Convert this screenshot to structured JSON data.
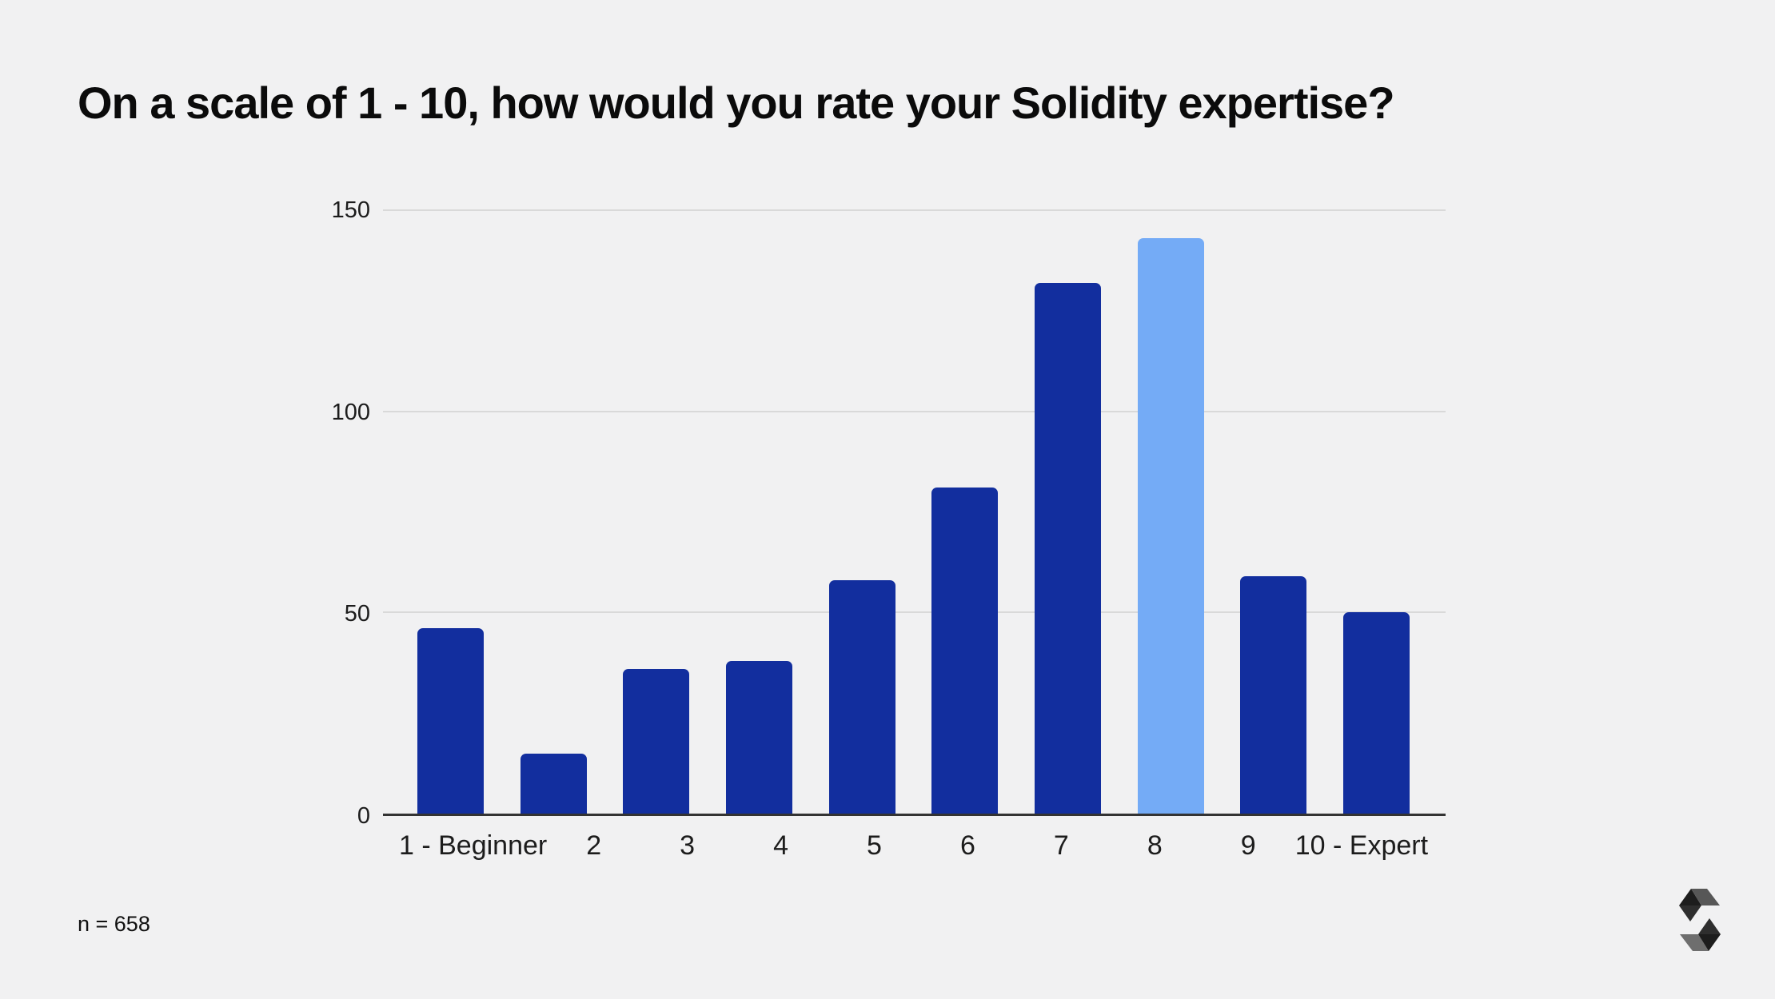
{
  "title": "On a scale of 1 - 10, how would you rate your Solidity expertise?",
  "footer": {
    "sample_size_label": "n = 658"
  },
  "logo": {
    "name": "solidity-logo"
  },
  "colors": {
    "background": "#f1f1f2",
    "bar": "#122e9e",
    "bar_highlight": "#74abf6",
    "gridline": "#d9d9d9",
    "axis_line": "#333333",
    "text": "#1c1c1c"
  },
  "chart_data": {
    "type": "bar",
    "title": "On a scale of 1 - 10, how would you rate your Solidity expertise?",
    "categories": [
      "1 - Beginner",
      "2",
      "3",
      "4",
      "5",
      "6",
      "7",
      "8",
      "9",
      "10 - Expert"
    ],
    "values": [
      46,
      15,
      36,
      38,
      58,
      81,
      132,
      143,
      59,
      50
    ],
    "highlight_index": 7,
    "highlighted_category": "8",
    "xlabel": "",
    "ylabel": "",
    "ylim": [
      0,
      150
    ],
    "yticks": [
      0,
      50,
      100,
      150
    ],
    "ytick_labels": [
      "0",
      "50",
      "100",
      "150"
    ],
    "grid": true,
    "legend": "none",
    "note": "n = 658"
  }
}
